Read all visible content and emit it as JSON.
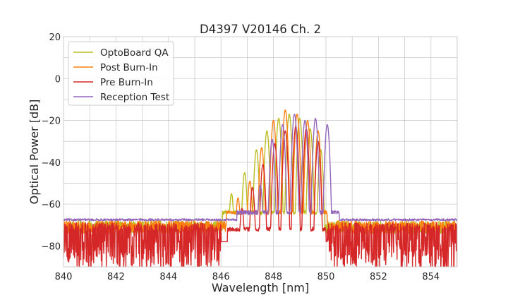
{
  "chart_data": {
    "type": "line",
    "title": "D4397 V20146 Ch. 2",
    "xlabel": "Wavelength [nm]",
    "ylabel": "Optical Power [dB]",
    "xlim": [
      840,
      855
    ],
    "ylim": [
      -90,
      20
    ],
    "xticks": [
      840,
      842,
      844,
      846,
      848,
      850,
      852,
      854
    ],
    "yticks": [
      20,
      0,
      -20,
      -40,
      -60,
      -80
    ],
    "xtick_labels": [
      "840",
      "842",
      "844",
      "846",
      "848",
      "850",
      "852",
      "854"
    ],
    "ytick_labels": [
      "20",
      "0",
      "−20",
      "−40",
      "−60",
      "−80"
    ],
    "grid": true,
    "legend_position": "top-left",
    "series": [
      {
        "name": "OptoBoard QA",
        "color": "#bcbd22",
        "floor": -71,
        "noise_amplitude": 3,
        "noise_start": 840,
        "noise_end": 855,
        "edges": [
          846.05,
          849.95
        ],
        "peaks": [
          {
            "x": 846.4,
            "y": -55
          },
          {
            "x": 846.9,
            "y": -45
          },
          {
            "x": 847.35,
            "y": -34
          },
          {
            "x": 847.75,
            "y": -25
          },
          {
            "x": 848.2,
            "y": -19
          },
          {
            "x": 848.6,
            "y": -17
          },
          {
            "x": 849.0,
            "y": -19
          },
          {
            "x": 849.4,
            "y": -24
          },
          {
            "x": 849.8,
            "y": -34
          }
        ]
      },
      {
        "name": "Post Burn-In",
        "color": "#ff7f0e",
        "floor": -71,
        "noise_amplitude": 3,
        "noise_start": 840,
        "noise_end": 855,
        "edges": [
          846.2,
          850.05
        ],
        "peaks": [
          {
            "x": 846.65,
            "y": -57
          },
          {
            "x": 847.1,
            "y": -49
          },
          {
            "x": 847.55,
            "y": -33
          },
          {
            "x": 848.0,
            "y": -20
          },
          {
            "x": 848.45,
            "y": -15
          },
          {
            "x": 848.9,
            "y": -17
          },
          {
            "x": 849.3,
            "y": -20
          },
          {
            "x": 849.7,
            "y": -25
          }
        ]
      },
      {
        "name": "Pre Burn-In",
        "color": "#d62728",
        "floor": -81,
        "noise_amplitude": 7,
        "noise_start": 840,
        "noise_end": 855,
        "noise_gap": [
          846,
          850.05
        ],
        "edges": [
          846.25,
          850.0
        ],
        "peaks": [
          {
            "x": 846.8,
            "y": -62
          },
          {
            "x": 847.2,
            "y": -52
          },
          {
            "x": 847.6,
            "y": -41
          },
          {
            "x": 848.05,
            "y": -31
          },
          {
            "x": 848.45,
            "y": -25
          },
          {
            "x": 848.85,
            "y": -23
          },
          {
            "x": 849.25,
            "y": -24
          },
          {
            "x": 849.7,
            "y": -30
          }
        ]
      },
      {
        "name": "Reception Test",
        "color": "#9467bd",
        "floor": -67.5,
        "noise_amplitude": 0.5,
        "noise_start": 840,
        "noise_end": 855,
        "edges": [
          846.6,
          850.5
        ],
        "peaks": [
          {
            "x": 847.1,
            "y": -64
          },
          {
            "x": 847.5,
            "y": -51
          },
          {
            "x": 847.95,
            "y": -29
          },
          {
            "x": 848.35,
            "y": -22
          },
          {
            "x": 848.8,
            "y": -17
          },
          {
            "x": 849.2,
            "y": -20
          },
          {
            "x": 849.6,
            "y": -19
          },
          {
            "x": 850.05,
            "y": -22
          }
        ]
      }
    ]
  }
}
